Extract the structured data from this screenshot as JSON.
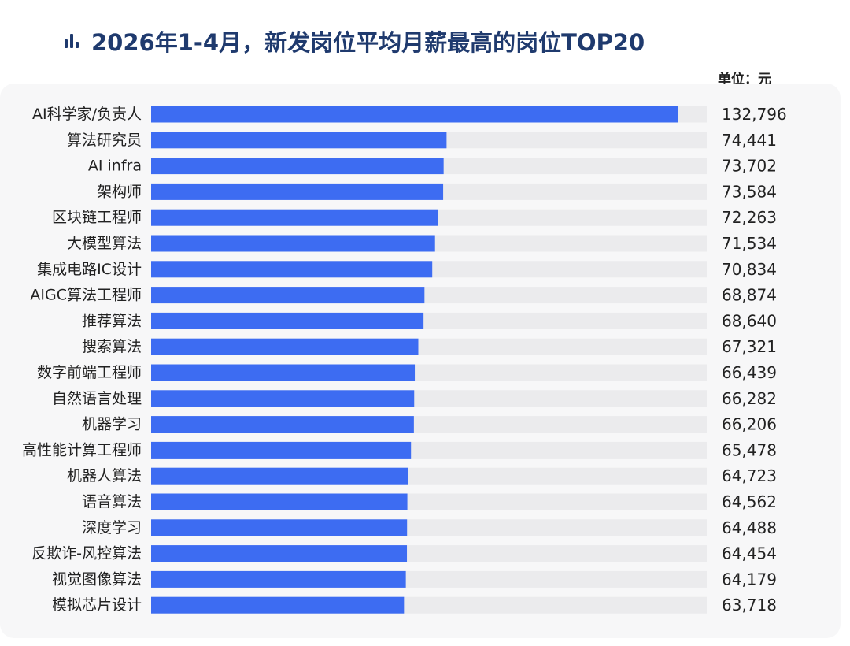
{
  "chart_data": {
    "type": "bar",
    "orientation": "horizontal",
    "title": "2026年1-4月，新发岗位平均月薪最高的岗位TOP20",
    "unit": "单位：元",
    "xlabel": "",
    "ylabel": "",
    "xlim": [
      0,
      140000
    ],
    "grid": false,
    "legend": "none",
    "categories": [
      "AI科学家/负责人",
      "算法研究员",
      "AI infra",
      "架构师",
      "区块链工程师",
      "大模型算法",
      "集成电路IC设计",
      "AIGC算法工程师",
      "推荐算法",
      "搜索算法",
      "数字前端工程师",
      "自然语言处理",
      "机器学习",
      "高性能计算工程师",
      "机器人算法",
      "语音算法",
      "深度学习",
      "反欺诈-风控算法",
      "视觉图像算法",
      "模拟芯片设计"
    ],
    "values": [
      132796,
      74441,
      73702,
      73584,
      72263,
      71534,
      70834,
      68874,
      68640,
      67321,
      66439,
      66282,
      66206,
      65478,
      64723,
      64562,
      64488,
      64454,
      64179,
      63718
    ],
    "value_labels": [
      "132,796",
      "74,441",
      "73,702",
      "73,584",
      "72,263",
      "71,534",
      "70,834",
      "68,874",
      "68,640",
      "67,321",
      "66,439",
      "66,282",
      "66,206",
      "65,478",
      "64,723",
      "64,562",
      "64,488",
      "64,454",
      "64,179",
      "63,718"
    ],
    "colors": {
      "bar": "#3d6cf2",
      "track": "#ebebed",
      "panel": "#f7f7f8",
      "title": "#1f3a6e",
      "text": "#222222"
    }
  }
}
